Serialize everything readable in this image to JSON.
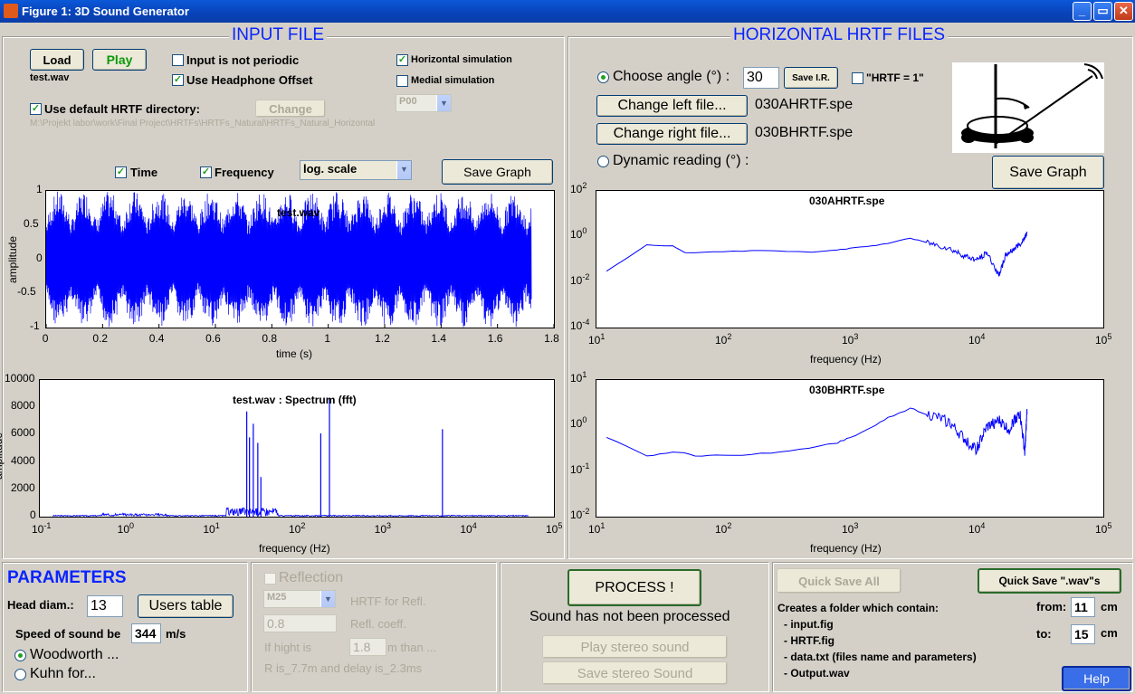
{
  "window": {
    "title": "Figure 1: 3D Sound Generator"
  },
  "input_file": {
    "title": "INPUT FILE",
    "load_label": "Load",
    "play_label": "Play",
    "filename": "test.wav",
    "not_periodic_label": "Input is not periodic",
    "headphone_offset_label": "Use Headphone Offset",
    "horizontal_sim_label": "Horizontal simulation",
    "medial_sim_label": "Medial simulation",
    "default_dir_label": "Use default HRTF directory:",
    "change_label": "Change",
    "select_value": "P00",
    "path": "M:\\Projekt labor\\work\\Final Project\\HRTFs\\HRTFs_Natural\\HRTFs_Natural_Horizontal",
    "time_label": "Time",
    "frequency_label": "Frequency",
    "scale_value": "log. scale",
    "save_graph_label": "Save Graph"
  },
  "hrtf": {
    "title": "HORIZONTAL HRTF FILES",
    "choose_angle_label": "Choose angle (°) :",
    "angle_value": "30",
    "save_ir_label": "Save I.R.",
    "hrtf_one_label": "\"HRTF = 1\"",
    "change_left_label": "Change left file...",
    "left_file": "030AHRTF.spe",
    "change_right_label": "Change right file...",
    "right_file": "030BHRTF.spe",
    "dynamic_label": "Dynamic reading (°) :",
    "save_graph_label": "Save Graph"
  },
  "parameters": {
    "title": "PARAMETERS",
    "head_label": "Head diam.:",
    "head_value": "13",
    "users_table_label": "Users table",
    "speed_label": "Speed of sound be",
    "speed_value": "344",
    "speed_unit": "m/s",
    "woodworth_label": "Woodworth ...",
    "kuhn_label": "Kuhn for..."
  },
  "reflection": {
    "reflection_label": "Reflection",
    "select_value": "M25",
    "hrtf_refl_label": "HRTF for Refl.",
    "coeff_value": "0.8",
    "coeff_label": "Refl. coeff.",
    "if_label": "If hight is",
    "height_value": "1.8",
    "than_label": "m than ...",
    "result_text": "R is_7.7m and delay is_2.3ms"
  },
  "process": {
    "process_label": "PROCESS !",
    "status": "Sound has not been processed",
    "play_stereo_label": "Play stereo sound",
    "save_stereo_label": "Save stereo Sound"
  },
  "save": {
    "quick_save_all_label": "Quick Save All",
    "quick_save_wavs_label": "Quick Save \".wav\"s",
    "desc": "Creates a folder which contain:",
    "items": [
      "- input.fig",
      "- HRTF.fig",
      "- data.txt (files name and parameters)",
      "- Output.wav"
    ],
    "from_label": "from:",
    "from_value": "11",
    "to_label": "to:",
    "to_value": "15",
    "unit": "cm",
    "help_label": "Help"
  },
  "chart_data": [
    {
      "type": "line",
      "title": "test.wav",
      "xlabel": "time (s)",
      "ylabel": "amplitude",
      "xlim": [
        0,
        1.8
      ],
      "ylim": [
        -1,
        1
      ],
      "xticks": [
        "0",
        "0.2",
        "0.4",
        "0.6",
        "0.8",
        "1",
        "1.2",
        "1.4",
        "1.6",
        "1.8"
      ],
      "yticks": [
        "1",
        "0.5",
        "0",
        "-0.5",
        "-1"
      ],
      "signal_duration": 1.72,
      "color": "#0000ff"
    },
    {
      "type": "line",
      "title": "test.wav : Spectrum (fft)",
      "xlabel": "frequency (Hz)",
      "ylabel": "amplitude",
      "xscale": "log",
      "xlim": [
        0.1,
        100000
      ],
      "ylim": [
        0,
        10000
      ],
      "xtick_exponents": [
        "-1",
        "0",
        "1",
        "2",
        "3",
        "4",
        "5"
      ],
      "yticks": [
        "10000",
        "8000",
        "6000",
        "4000",
        "2000",
        "0"
      ],
      "peaks": [
        {
          "x": 26,
          "y": 7700
        },
        {
          "x": 28,
          "y": 5800
        },
        {
          "x": 31,
          "y": 6800
        },
        {
          "x": 35,
          "y": 5400
        },
        {
          "x": 38,
          "y": 2900
        },
        {
          "x": 190,
          "y": 6100
        },
        {
          "x": 240,
          "y": 8700
        },
        {
          "x": 5000,
          "y": 6400
        }
      ],
      "color": "#0000ff"
    },
    {
      "type": "line",
      "title": "030AHRTF.spe",
      "xlabel": "frequency (Hz)",
      "xscale": "log",
      "yscale": "log",
      "xlim": [
        10,
        100000
      ],
      "ylim": [
        0.0001,
        100
      ],
      "xtick_exponents": [
        "1",
        "2",
        "3",
        "4",
        "5"
      ],
      "ytick_exponents": [
        "2",
        "0",
        "-2",
        "-4"
      ],
      "x": [
        12,
        25,
        40,
        50,
        100,
        200,
        500,
        800,
        1000,
        1500,
        2000,
        3000,
        4000,
        6000,
        8000,
        10000,
        12000,
        15000,
        17000,
        20000,
        23000,
        25000
      ],
      "y": [
        0.03,
        0.42,
        0.38,
        0.19,
        0.22,
        0.24,
        0.21,
        0.26,
        0.3,
        0.38,
        0.5,
        0.85,
        0.55,
        0.3,
        0.14,
        0.09,
        0.2,
        0.02,
        0.15,
        0.3,
        0.6,
        1.5
      ],
      "color": "#0000ff"
    },
    {
      "type": "line",
      "title": "030BHRTF.spe",
      "xlabel": "frequency (Hz)",
      "xscale": "log",
      "yscale": "log",
      "xlim": [
        10,
        100000
      ],
      "ylim": [
        0.01,
        10
      ],
      "xtick_exponents": [
        "1",
        "2",
        "3",
        "4",
        "5"
      ],
      "ytick_exponents": [
        "1",
        "0",
        "-1",
        "-2"
      ],
      "x": [
        12,
        25,
        40,
        60,
        100,
        200,
        400,
        800,
        1000,
        1500,
        2000,
        3000,
        4000,
        6000,
        8000,
        10000,
        12000,
        15000,
        18000,
        20000,
        22000,
        24000,
        25000
      ],
      "y": [
        0.55,
        0.21,
        0.27,
        0.22,
        0.22,
        0.24,
        0.3,
        0.42,
        0.55,
        0.9,
        1.5,
        2.4,
        1.8,
        1.2,
        0.5,
        0.3,
        0.9,
        1.3,
        0.8,
        1.4,
        1.8,
        0.25,
        2.0
      ],
      "color": "#0000ff"
    }
  ]
}
